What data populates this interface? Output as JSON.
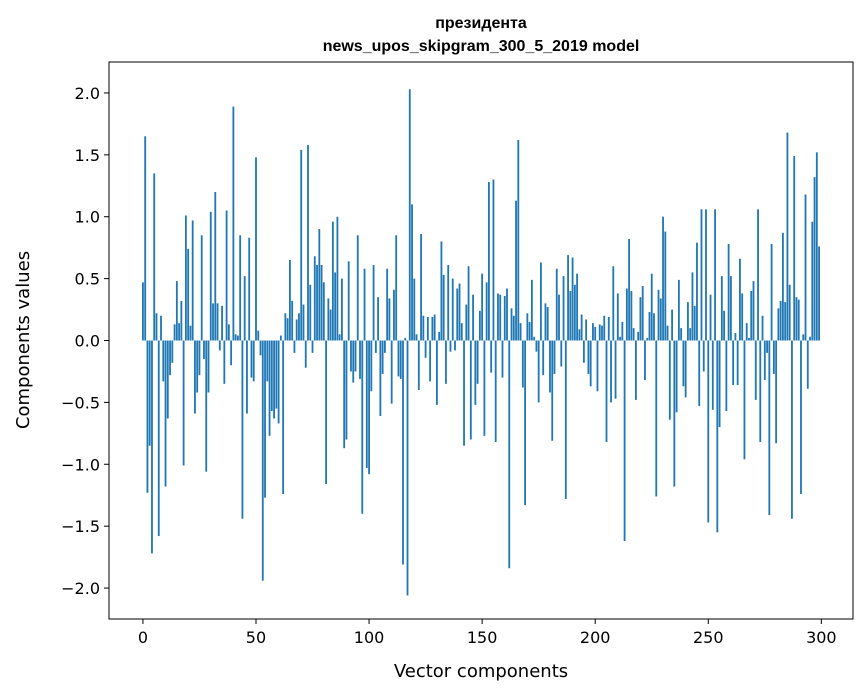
{
  "chart_data": {
    "type": "bar",
    "title_line1": "президента",
    "title_line2": "news_upos_skipgram_300_5_2019 model",
    "xlabel": "Vector components",
    "ylabel": "Components values",
    "xlim": [
      -15,
      314
    ],
    "ylim": [
      -2.25,
      2.25
    ],
    "xticks": [
      0,
      50,
      100,
      150,
      200,
      250,
      300
    ],
    "yticks": [
      -2.0,
      -1.5,
      -1.0,
      -0.5,
      0.0,
      0.5,
      1.0,
      1.5,
      2.0
    ],
    "ytick_labels": [
      "−2.0",
      "−1.5",
      "−1.0",
      "−0.5",
      "0.0",
      "0.5",
      "1.0",
      "1.5",
      "2.0"
    ],
    "bar_color": "#1f77b4",
    "grid": false,
    "values": [
      0.47,
      1.65,
      -1.23,
      -0.85,
      -1.72,
      1.35,
      0.22,
      -1.58,
      0.2,
      -0.33,
      -1.18,
      -0.63,
      -0.28,
      -0.18,
      0.13,
      0.48,
      0.14,
      0.32,
      -1.01,
      1.01,
      0.74,
      0.12,
      0.97,
      -0.59,
      -0.42,
      -0.28,
      0.85,
      -0.15,
      -1.06,
      -0.42,
      1.04,
      0.3,
      1.2,
      0.3,
      -0.08,
      0.28,
      -0.35,
      1.05,
      0.13,
      -0.2,
      1.89,
      0.05,
      0.04,
      0.85,
      -1.44,
      0.52,
      -0.59,
      0.83,
      -0.3,
      -0.33,
      1.48,
      0.08,
      -0.12,
      -1.94,
      -1.27,
      -0.33,
      -0.77,
      -0.57,
      -0.63,
      -0.55,
      -0.67,
      0.04,
      -1.24,
      0.22,
      0.18,
      0.65,
      0.32,
      -0.1,
      0.17,
      0.22,
      1.54,
      0.29,
      -0.22,
      1.58,
      0.45,
      -0.1,
      0.68,
      0.61,
      0.9,
      0.61,
      0.47,
      -1.16,
      0.34,
      0.25,
      0.96,
      0.55,
      1.0,
      0.05,
      0.5,
      -0.87,
      -0.8,
      0.64,
      -0.25,
      -0.34,
      -0.25,
      0.85,
      -0.31,
      -1.4,
      0.58,
      -1.03,
      -1.08,
      -0.41,
      0.61,
      -0.1,
      0.35,
      -0.61,
      -0.27,
      -0.1,
      0.58,
      0.34,
      -0.51,
      0.41,
      0.85,
      -0.29,
      -0.31,
      -1.81,
      0.02,
      -2.06,
      2.03,
      1.1,
      0.5,
      0.05,
      -0.4,
      0.86,
      0.2,
      -0.14,
      0.19,
      -0.33,
      0.19,
      0.21,
      -0.52,
      0.07,
      0.8,
      0.53,
      -0.35,
      0.61,
      -0.09,
      0.5,
      -0.08,
      0.42,
      0.46,
      0.14,
      -0.85,
      0.29,
      0.6,
      -0.8,
      0.37,
      -0.52,
      -0.35,
      0.24,
      0.54,
      -0.77,
      0.47,
      1.28,
      -0.26,
      1.3,
      -0.82,
      0.38,
      0.37,
      -0.3,
      0.36,
      0.42,
      -1.84,
      0.26,
      0.2,
      1.13,
      1.62,
      0.14,
      -0.38,
      -1.33,
      0.22,
      0.15,
      0.49,
      0.03,
      -0.09,
      -0.5,
      0.63,
      -0.28,
      0.3,
      0.27,
      -0.42,
      -0.81,
      -0.27,
      0.58,
      0.37,
      -0.21,
      0.52,
      -1.28,
      0.69,
      0.4,
      0.67,
      0.45,
      0.54,
      0.09,
      0.21,
      -0.18,
      0.17,
      -0.27,
      -0.37,
      0.14,
      0.11,
      -0.41,
      0.13,
      0.12,
      0.2,
      -0.82,
      0.19,
      -0.5,
      0.6,
      -0.47,
      0.38,
      0.03,
      0.15,
      -1.62,
      0.42,
      0.82,
      0.4,
      0.1,
      -0.48,
      0.07,
      0.35,
      0.44,
      -0.32,
      0.02,
      0.23,
      0.54,
      0.22,
      -1.26,
      0.41,
      0.34,
      1.0,
      0.88,
      0.12,
      -0.64,
      0.25,
      -1.18,
      -0.58,
      0.49,
      0.1,
      -0.37,
      -0.46,
      0.31,
      0.1,
      0.55,
      0.28,
      0.79,
      -0.53,
      1.06,
      -0.25,
      1.06,
      -1.47,
      0.37,
      -0.56,
      1.06,
      -1.55,
      -0.7,
      0.52,
      0.24,
      -0.57,
      0.78,
      0.52,
      -0.36,
      0.06,
      -0.36,
      0.66,
      0.38,
      -0.96,
      0.14,
      0.02,
      0.4,
      0.48,
      -0.48,
      1.06,
      -0.82,
      0.2,
      -0.32,
      -0.1,
      -1.41,
      0.78,
      -0.27,
      -0.83,
      0.26,
      0.32,
      0.87,
      0.31,
      1.68,
      0.45,
      -1.44,
      1.49,
      0.35,
      0.33,
      -1.24,
      0.05,
      1.18,
      -0.39,
      0.03,
      0.96,
      1.32,
      1.52,
      0.76
    ]
  }
}
